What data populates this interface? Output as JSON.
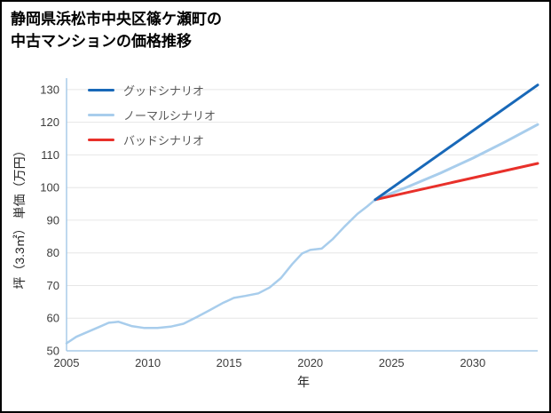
{
  "title": {
    "line1": "静岡県浜松市中央区篠ケ瀬町の",
    "line2": "中古マンションの価格推移"
  },
  "legend": [
    {
      "label": "グッドシナリオ",
      "color": "#1868b8"
    },
    {
      "label": "ノーマルシナリオ",
      "color": "#a8cdec"
    },
    {
      "label": "バッドシナリオ",
      "color": "#e8302a"
    }
  ],
  "colors": {
    "axis": "#a8cbe8",
    "grid": "#e6e6e6",
    "tick_text": "#3d3d3d"
  },
  "chart_data": {
    "type": "line",
    "title": "静岡県浜松市中央区篠ケ瀬町の中古マンションの価格推移",
    "xlabel": "年",
    "ylabel": "坪（3.3㎡） 単価（万円）",
    "xlim": [
      2005,
      2034
    ],
    "ylim": [
      50,
      133.5
    ],
    "x_ticks": [
      2005,
      2010,
      2015,
      2020,
      2025,
      2030
    ],
    "y_ticks": [
      50,
      60,
      70,
      80,
      90,
      100,
      110,
      120,
      130
    ],
    "grid": "horizontal",
    "legend_position": "top-left",
    "series": [
      {
        "name": "historical",
        "color": "#a8cdec",
        "width": 2.5,
        "points": [
          [
            2005,
            52.3
          ],
          [
            2005.6,
            54.3
          ],
          [
            2006.3,
            55.8
          ],
          [
            2007,
            57.3
          ],
          [
            2007.6,
            58.6
          ],
          [
            2008.2,
            58.9
          ],
          [
            2009,
            57.6
          ],
          [
            2009.8,
            57.0
          ],
          [
            2010.6,
            57.0
          ],
          [
            2011.4,
            57.4
          ],
          [
            2012.2,
            58.3
          ],
          [
            2013,
            60.3
          ],
          [
            2013.8,
            62.4
          ],
          [
            2014.6,
            64.6
          ],
          [
            2015.3,
            66.2
          ],
          [
            2016,
            66.8
          ],
          [
            2016.8,
            67.6
          ],
          [
            2017.5,
            69.4
          ],
          [
            2018.2,
            72.3
          ],
          [
            2018.9,
            76.6
          ],
          [
            2019.5,
            79.8
          ],
          [
            2020,
            80.9
          ],
          [
            2020.7,
            81.3
          ],
          [
            2021.4,
            84.3
          ],
          [
            2022.1,
            88.0
          ],
          [
            2022.9,
            91.9
          ],
          [
            2023.5,
            94.2
          ],
          [
            2024,
            96.3
          ]
        ]
      },
      {
        "name": "ノーマルシナリオ",
        "color": "#a8cdec",
        "width": 3,
        "points": [
          [
            2024,
            96.3
          ],
          [
            2026,
            100.2
          ],
          [
            2028,
            104.4
          ],
          [
            2030,
            109.0
          ],
          [
            2032,
            114.0
          ],
          [
            2034,
            119.3
          ]
        ]
      },
      {
        "name": "バッドシナリオ",
        "color": "#e8302a",
        "width": 3,
        "points": [
          [
            2024,
            96.3
          ],
          [
            2034,
            107.4
          ]
        ]
      },
      {
        "name": "グッドシナリオ",
        "color": "#1868b8",
        "width": 3,
        "points": [
          [
            2024,
            96.3
          ],
          [
            2034,
            131.4
          ]
        ]
      }
    ]
  }
}
